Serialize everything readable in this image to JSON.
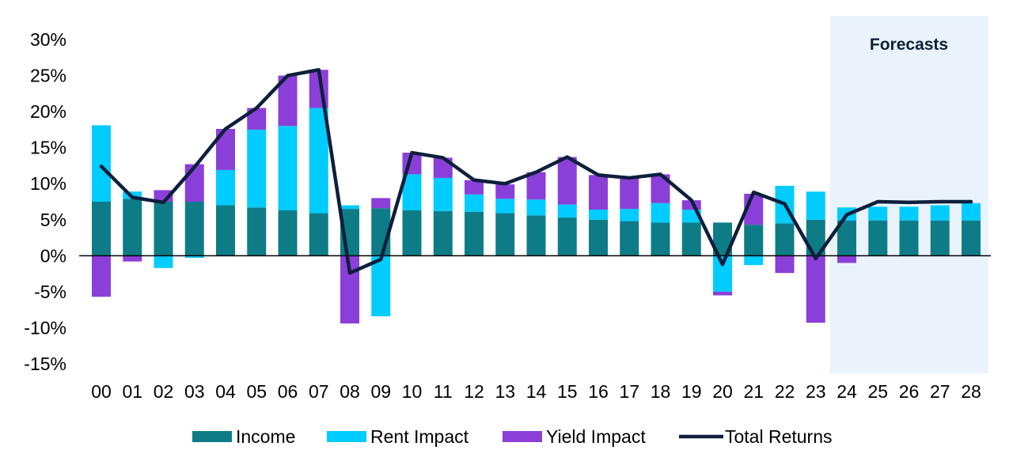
{
  "chart_data": {
    "type": "bar",
    "stacked": true,
    "categories": [
      "00",
      "01",
      "02",
      "03",
      "04",
      "05",
      "06",
      "07",
      "08",
      "09",
      "10",
      "11",
      "12",
      "13",
      "14",
      "15",
      "16",
      "17",
      "18",
      "19",
      "20",
      "21",
      "22",
      "23",
      "24",
      "25",
      "26",
      "27",
      "28"
    ],
    "series": [
      {
        "name": "Income",
        "kind": "bar",
        "color": "#0e7c86",
        "values": [
          7.5,
          7.9,
          7.5,
          7.5,
          7.0,
          6.7,
          6.3,
          5.9,
          6.5,
          6.6,
          6.3,
          6.2,
          6.1,
          5.9,
          5.6,
          5.3,
          5.0,
          4.8,
          4.6,
          4.6,
          4.6,
          4.3,
          4.5,
          5.0,
          4.9,
          4.9,
          4.9,
          4.9,
          4.9
        ]
      },
      {
        "name": "Rent Impact",
        "kind": "bar",
        "color": "#00ccff",
        "values": [
          10.6,
          1.0,
          -1.7,
          -0.3,
          4.9,
          10.8,
          11.7,
          14.6,
          0.5,
          -8.4,
          5.0,
          4.6,
          2.4,
          2.0,
          2.2,
          1.8,
          1.4,
          1.7,
          2.7,
          1.8,
          -5.0,
          -1.3,
          5.2,
          3.9,
          1.8,
          1.9,
          1.9,
          2.1,
          2.4
        ]
      },
      {
        "name": "Yield Impact",
        "kind": "bar",
        "color": "#8b3fd9",
        "values": [
          -5.7,
          -0.8,
          1.6,
          5.2,
          5.7,
          3.0,
          7.0,
          5.3,
          -9.4,
          1.4,
          3.0,
          2.8,
          2.0,
          2.0,
          3.8,
          6.6,
          4.8,
          4.4,
          4.0,
          1.3,
          -0.5,
          4.3,
          -2.4,
          -9.3,
          -1.0,
          0,
          0,
          0,
          0
        ]
      },
      {
        "name": "Total Returns",
        "kind": "line",
        "color": "#0d1f3c",
        "values": [
          12.4,
          8.1,
          7.4,
          12.3,
          17.6,
          20.5,
          25.0,
          25.8,
          -2.4,
          -0.5,
          14.3,
          13.6,
          10.5,
          10.0,
          11.6,
          13.7,
          11.2,
          10.8,
          11.3,
          7.7,
          -1.2,
          8.8,
          7.2,
          -0.4,
          5.7,
          7.5,
          7.4,
          7.5,
          7.5
        ]
      }
    ],
    "yticks": [
      -15,
      -10,
      -5,
      0,
      5,
      10,
      15,
      20,
      25,
      30
    ],
    "ytick_labels": [
      "-15%",
      "-10%",
      "-5%",
      "0%",
      "5%",
      "10%",
      "15%",
      "20%",
      "25%",
      "30%"
    ],
    "ylim": [
      -15,
      30
    ],
    "annotation": {
      "text": "Forecasts",
      "start_category": "24",
      "end_category": "28",
      "shade_color": "#eaf3fb"
    },
    "title": "",
    "xlabel": "",
    "ylabel": "",
    "legend": {
      "position": "bottom",
      "entries": [
        "Income",
        "Rent Impact",
        "Yield Impact",
        "Total Returns"
      ]
    },
    "grid": false
  }
}
